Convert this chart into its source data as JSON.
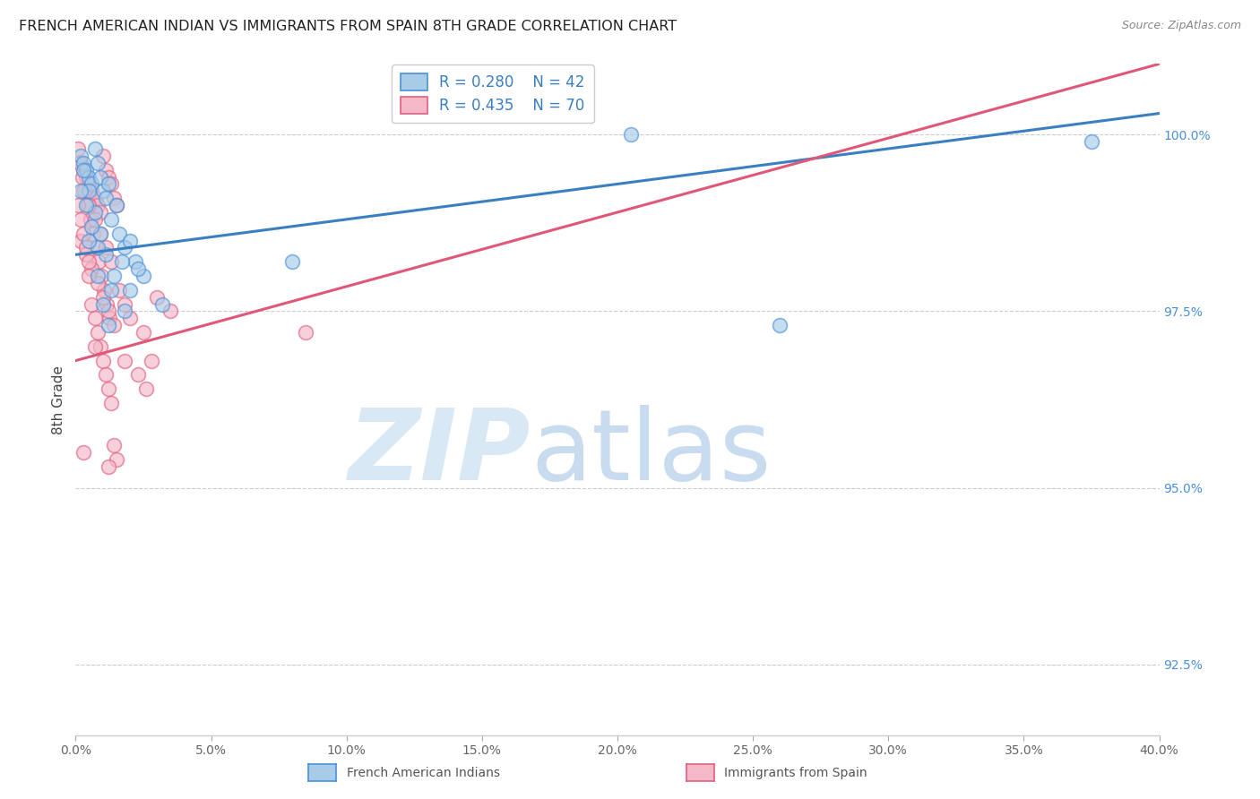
{
  "title": "FRENCH AMERICAN INDIAN VS IMMIGRANTS FROM SPAIN 8TH GRADE CORRELATION CHART",
  "source": "Source: ZipAtlas.com",
  "ylabel": "8th Grade",
  "xlim": [
    0.0,
    40.0
  ],
  "ylim": [
    91.5,
    101.0
  ],
  "y_ticks": [
    92.5,
    95.0,
    97.5,
    100.0
  ],
  "legend_R1": "R = 0.280",
  "legend_N1": "N = 42",
  "legend_R2": "R = 0.435",
  "legend_N2": "N = 70",
  "blue_color": "#a8cce8",
  "blue_edge_color": "#4a90d9",
  "pink_color": "#f4b8c8",
  "pink_edge_color": "#e0607e",
  "blue_line_color": "#3a7fc1",
  "pink_line_color": "#e05878",
  "watermark_zip_color": "#c8dff0",
  "watermark_atlas_color": "#9dbfe0",
  "blue_scatter_x": [
    0.2,
    0.3,
    0.4,
    0.5,
    0.6,
    0.7,
    0.8,
    0.9,
    1.0,
    1.1,
    1.2,
    1.3,
    1.5,
    1.6,
    1.8,
    2.0,
    2.2,
    2.5,
    0.3,
    0.5,
    0.7,
    0.9,
    1.1,
    1.4,
    1.7,
    2.0,
    0.2,
    0.4,
    0.6,
    0.8,
    1.0,
    1.3,
    0.5,
    0.8,
    1.2,
    1.8,
    2.3,
    3.2,
    8.0,
    20.5,
    26.0,
    37.5
  ],
  "blue_scatter_y": [
    99.7,
    99.6,
    99.5,
    99.4,
    99.3,
    99.8,
    99.6,
    99.4,
    99.2,
    99.1,
    99.3,
    98.8,
    99.0,
    98.6,
    98.4,
    98.5,
    98.2,
    98.0,
    99.5,
    99.2,
    98.9,
    98.6,
    98.3,
    98.0,
    98.2,
    97.8,
    99.2,
    99.0,
    98.7,
    98.4,
    97.6,
    97.8,
    98.5,
    98.0,
    97.3,
    97.5,
    98.1,
    97.6,
    98.2,
    100.0,
    97.3,
    99.9
  ],
  "pink_scatter_x": [
    0.1,
    0.2,
    0.3,
    0.4,
    0.5,
    0.6,
    0.7,
    0.8,
    0.9,
    1.0,
    1.1,
    1.2,
    1.3,
    1.4,
    1.5,
    0.15,
    0.25,
    0.35,
    0.45,
    0.55,
    0.65,
    0.75,
    0.85,
    0.95,
    1.05,
    1.15,
    1.25,
    0.2,
    0.4,
    0.6,
    0.8,
    1.0,
    1.2,
    1.4,
    0.3,
    0.5,
    0.7,
    0.9,
    1.1,
    1.3,
    1.6,
    1.8,
    2.0,
    2.5,
    3.0,
    3.5,
    0.1,
    0.2,
    0.3,
    0.4,
    0.5,
    0.6,
    0.7,
    0.8,
    0.9,
    1.0,
    1.1,
    1.2,
    1.3,
    1.4,
    1.5,
    8.5,
    2.3,
    2.6,
    0.5,
    0.7,
    1.8,
    0.3,
    1.2,
    2.8
  ],
  "pink_scatter_y": [
    99.8,
    99.6,
    99.5,
    99.4,
    99.3,
    99.2,
    99.1,
    99.0,
    98.9,
    99.7,
    99.5,
    99.4,
    99.3,
    99.1,
    99.0,
    99.6,
    99.4,
    99.2,
    99.0,
    98.8,
    98.6,
    98.4,
    98.2,
    98.0,
    97.8,
    97.6,
    97.4,
    98.5,
    98.3,
    98.1,
    97.9,
    97.7,
    97.5,
    97.3,
    99.2,
    99.0,
    98.8,
    98.6,
    98.4,
    98.2,
    97.8,
    97.6,
    97.4,
    97.2,
    97.7,
    97.5,
    99.0,
    98.8,
    98.6,
    98.4,
    98.2,
    97.6,
    97.4,
    97.2,
    97.0,
    96.8,
    96.6,
    96.4,
    96.2,
    95.6,
    95.4,
    97.2,
    96.6,
    96.4,
    98.0,
    97.0,
    96.8,
    95.5,
    95.3,
    96.8
  ],
  "blue_trend_x": [
    0.0,
    40.0
  ],
  "blue_trend_y": [
    98.3,
    100.3
  ],
  "pink_trend_x": [
    0.0,
    40.0
  ],
  "pink_trend_y": [
    96.8,
    101.0
  ]
}
